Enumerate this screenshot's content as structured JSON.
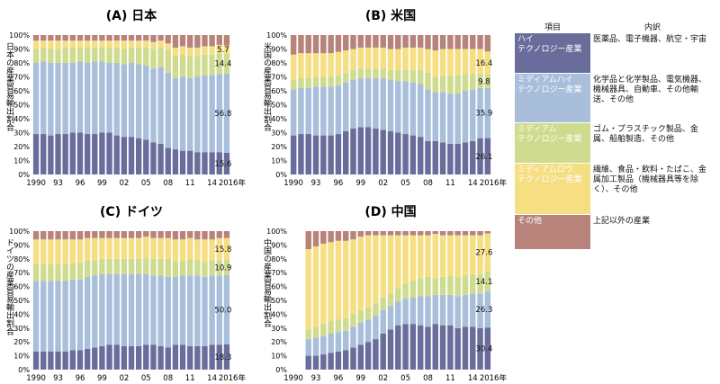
{
  "colors": {
    "high": "#6a6d9b",
    "medium_high": "#a8bedb",
    "medium": "#cfdb8f",
    "medium_low": "#f6de82",
    "other": "#b7837a"
  },
  "legend": {
    "header_item": "項目",
    "header_desc": "内訳",
    "rows": [
      {
        "key": "high",
        "label": "ハイ\nテクノロジー産業",
        "desc": "医薬品、電子機器、航空・宇宙"
      },
      {
        "key": "medium_high",
        "label": "ミディアムハイ\nテクノロジー産業",
        "desc": "化学品と化学製品、電気機器、機械器具、自動車、その他輸送、その他"
      },
      {
        "key": "medium",
        "label": "ミディアム\nテクノロジー産業",
        "desc": "ゴム・プラスチック製品、金属、船舶製造、その他"
      },
      {
        "key": "medium_low",
        "label": "ミディアムロウ\nテクノロジー産業",
        "desc": "繊維、食品・飲料・たばこ、金属加工製品（機械器具等を除く）、その他"
      },
      {
        "key": "other",
        "label": "その他",
        "desc": "上記以外の産業"
      }
    ]
  },
  "chart_data": [
    {
      "type": "bar",
      "title": "(A) 日本",
      "ylabel": "日本の産業貿易輸出割合",
      "ylim": [
        0,
        100
      ],
      "yticks": [
        "0%",
        "10%",
        "20%",
        "30%",
        "40%",
        "50%",
        "60%",
        "70%",
        "80%",
        "90%",
        "100%"
      ],
      "xticks": [
        "1990",
        "93",
        "96",
        "99",
        "02",
        "05",
        "08",
        "11",
        "14",
        "2016年"
      ],
      "categories": [
        "1990",
        "1991",
        "1992",
        "1993",
        "1994",
        "1995",
        "1996",
        "1997",
        "1998",
        "1999",
        "2000",
        "2001",
        "2002",
        "2003",
        "2004",
        "2005",
        "2006",
        "2007",
        "2008",
        "2009",
        "2010",
        "2011",
        "2012",
        "2013",
        "2014",
        "2015",
        "2016"
      ],
      "series": [
        {
          "key": "high",
          "values": [
            29,
            29,
            28,
            29,
            29,
            30,
            30,
            29,
            29,
            30,
            30,
            28,
            27,
            27,
            26,
            25,
            23,
            22,
            19,
            18,
            17,
            17,
            16,
            16,
            16,
            16,
            15.6
          ]
        },
        {
          "key": "medium_high",
          "values": [
            51,
            52,
            52,
            51,
            51,
            50,
            51,
            51,
            52,
            51,
            50,
            52,
            52,
            53,
            53,
            53,
            53,
            55,
            54,
            51,
            53,
            52,
            54,
            55,
            55,
            56,
            56.8
          ]
        },
        {
          "key": "medium",
          "values": [
            10,
            10,
            10,
            10,
            11,
            11,
            10,
            11,
            10,
            10,
            11,
            11,
            11,
            11,
            12,
            13,
            14,
            14,
            16,
            16,
            16,
            16,
            15,
            15,
            15,
            15,
            14.4
          ]
        },
        {
          "key": "medium_low",
          "values": [
            6,
            5,
            6,
            6,
            5,
            5,
            5,
            5,
            5,
            5,
            5,
            5,
            6,
            5,
            5,
            5,
            5,
            5,
            5,
            6,
            6,
            6,
            6,
            6,
            6,
            6,
            5.7
          ]
        },
        {
          "key": "other",
          "values": [
            4,
            4,
            4,
            4,
            4,
            4,
            4,
            4,
            4,
            4,
            4,
            4,
            4,
            4,
            4,
            4,
            5,
            4,
            6,
            9,
            8,
            9,
            9,
            8,
            8,
            7,
            7.5
          ]
        }
      ],
      "annotations": [
        "15.6",
        "56.8",
        "14.4",
        "5.7"
      ]
    },
    {
      "type": "bar",
      "title": "(B) 米国",
      "ylabel": "米国の産業貿易輸出割合",
      "ylim": [
        0,
        100
      ],
      "yticks": [
        "0%",
        "10%",
        "20%",
        "30%",
        "40%",
        "50%",
        "60%",
        "70%",
        "80%",
        "90%",
        "100%"
      ],
      "xticks": [
        "1990",
        "93",
        "96",
        "99",
        "02",
        "05",
        "08",
        "11",
        "14",
        "2016年"
      ],
      "categories": [
        "1990",
        "1991",
        "1992",
        "1993",
        "1994",
        "1995",
        "1996",
        "1997",
        "1998",
        "1999",
        "2000",
        "2001",
        "2002",
        "2003",
        "2004",
        "2005",
        "2006",
        "2007",
        "2008",
        "2009",
        "2010",
        "2011",
        "2012",
        "2013",
        "2014",
        "2015",
        "2016"
      ],
      "series": [
        {
          "key": "high",
          "values": [
            28,
            29,
            29,
            28,
            28,
            28,
            29,
            31,
            33,
            34,
            34,
            33,
            32,
            31,
            30,
            29,
            28,
            27,
            24,
            24,
            23,
            22,
            22,
            23,
            24,
            26,
            26.1
          ]
        },
        {
          "key": "medium_high",
          "values": [
            33,
            33,
            33,
            35,
            35,
            35,
            35,
            35,
            35,
            35,
            35,
            36,
            37,
            37,
            37,
            38,
            38,
            38,
            37,
            35,
            36,
            36,
            36,
            37,
            37,
            36,
            35.9
          ]
        },
        {
          "key": "medium",
          "values": [
            7,
            7,
            7,
            7,
            7,
            7,
            7,
            7,
            7,
            7,
            7,
            7,
            7,
            7,
            8,
            8,
            9,
            10,
            12,
            11,
            12,
            13,
            13,
            12,
            11,
            10,
            9.8
          ]
        },
        {
          "key": "medium_low",
          "values": [
            18,
            18,
            18,
            17,
            17,
            17,
            17,
            16,
            15,
            15,
            15,
            15,
            15,
            15,
            15,
            16,
            16,
            16,
            17,
            19,
            19,
            19,
            19,
            18,
            18,
            18,
            16.4
          ]
        },
        {
          "key": "other",
          "values": [
            14,
            13,
            13,
            13,
            13,
            13,
            12,
            11,
            10,
            9,
            9,
            9,
            9,
            10,
            10,
            9,
            9,
            9,
            10,
            11,
            10,
            10,
            10,
            10,
            10,
            10,
            11.8
          ]
        }
      ],
      "annotations": [
        "26.1",
        "35.9",
        "9.8",
        "16.4"
      ]
    },
    {
      "type": "bar",
      "title": "(C) ドイツ",
      "ylabel": "ドイツの産業貿易輸出割合",
      "ylim": [
        0,
        100
      ],
      "yticks": [
        "0%",
        "10%",
        "20%",
        "30%",
        "40%",
        "50%",
        "60%",
        "70%",
        "80%",
        "90%",
        "100%"
      ],
      "xticks": [
        "1990",
        "93",
        "96",
        "99",
        "02",
        "05",
        "08",
        "11",
        "14",
        "2016年"
      ],
      "categories": [
        "1990",
        "1991",
        "1992",
        "1993",
        "1994",
        "1995",
        "1996",
        "1997",
        "1998",
        "1999",
        "2000",
        "2001",
        "2002",
        "2003",
        "2004",
        "2005",
        "2006",
        "2007",
        "2008",
        "2009",
        "2010",
        "2011",
        "2012",
        "2013",
        "2014",
        "2015",
        "2016"
      ],
      "series": [
        {
          "key": "high",
          "values": [
            13,
            13,
            13,
            13,
            13,
            14,
            14,
            15,
            16,
            17,
            18,
            18,
            17,
            17,
            17,
            18,
            18,
            17,
            16,
            18,
            18,
            17,
            17,
            17,
            18,
            18,
            18.3
          ]
        },
        {
          "key": "medium_high",
          "values": [
            51,
            51,
            51,
            51,
            51,
            51,
            51,
            52,
            52,
            52,
            51,
            51,
            52,
            52,
            52,
            51,
            50,
            51,
            51,
            49,
            50,
            51,
            51,
            50,
            50,
            50,
            50.0
          ]
        },
        {
          "key": "medium",
          "values": [
            12,
            12,
            12,
            12,
            12,
            12,
            12,
            12,
            11,
            11,
            11,
            11,
            11,
            11,
            11,
            12,
            12,
            12,
            13,
            11,
            11,
            12,
            11,
            11,
            11,
            11,
            10.9
          ]
        },
        {
          "key": "medium_low",
          "values": [
            18,
            18,
            18,
            18,
            18,
            17,
            17,
            16,
            16,
            15,
            15,
            15,
            15,
            15,
            15,
            15,
            15,
            15,
            15,
            16,
            15,
            15,
            15,
            16,
            15,
            16,
            15.8
          ]
        },
        {
          "key": "other",
          "values": [
            6,
            6,
            6,
            6,
            6,
            6,
            6,
            5,
            5,
            5,
            5,
            5,
            5,
            5,
            5,
            4,
            5,
            5,
            5,
            6,
            6,
            5,
            6,
            6,
            6,
            5,
            5.0
          ]
        }
      ],
      "annotations": [
        "18.3",
        "50.0",
        "10.9",
        "15.8"
      ]
    },
    {
      "type": "bar",
      "title": "(D) 中国",
      "ylabel": "中国の産業貿易輸出割合",
      "ylim": [
        0,
        100
      ],
      "yticks": [
        "0%",
        "10%",
        "20%",
        "30%",
        "40%",
        "50%",
        "60%",
        "70%",
        "80%",
        "90%",
        "100%"
      ],
      "xticks": [
        "1990",
        "93",
        "96",
        "99",
        "02",
        "05",
        "08",
        "11",
        "14",
        "2016年"
      ],
      "categories": [
        "1992",
        "1993",
        "1994",
        "1995",
        "1996",
        "1997",
        "1998",
        "1999",
        "2000",
        "2001",
        "2002",
        "2003",
        "2004",
        "2005",
        "2006",
        "2007",
        "2008",
        "2009",
        "2010",
        "2011",
        "2012",
        "2013",
        "2014",
        "2015",
        "2016"
      ],
      "series": [
        {
          "key": "high",
          "values": [
            10,
            10,
            11,
            12,
            13,
            14,
            16,
            18,
            20,
            22,
            26,
            29,
            32,
            33,
            33,
            32,
            31,
            33,
            32,
            32,
            30,
            31,
            31,
            30,
            30.4
          ]
        },
        {
          "key": "medium_high",
          "values": [
            12,
            13,
            13,
            14,
            14,
            14,
            15,
            16,
            16,
            17,
            17,
            17,
            17,
            18,
            19,
            21,
            22,
            21,
            22,
            22,
            23,
            23,
            24,
            25,
            26.3
          ]
        },
        {
          "key": "medium",
          "values": [
            7,
            8,
            9,
            9,
            9,
            9,
            9,
            9,
            9,
            9,
            9,
            9,
            10,
            11,
            12,
            13,
            14,
            12,
            13,
            14,
            14,
            14,
            14,
            14,
            14.1
          ]
        },
        {
          "key": "medium_low",
          "values": [
            58,
            58,
            58,
            57,
            57,
            56,
            54,
            53,
            52,
            49,
            45,
            42,
            38,
            35,
            33,
            31,
            30,
            32,
            30,
            29,
            30,
            29,
            28,
            28,
            27.6
          ]
        },
        {
          "key": "other",
          "values": [
            13,
            11,
            9,
            8,
            7,
            7,
            6,
            4,
            3,
            3,
            3,
            3,
            3,
            3,
            3,
            3,
            3,
            2,
            3,
            3,
            3,
            3,
            3,
            3,
            1.6
          ]
        }
      ],
      "annotations": [
        "30.4",
        "26.3",
        "14.1",
        "27.6"
      ]
    }
  ]
}
